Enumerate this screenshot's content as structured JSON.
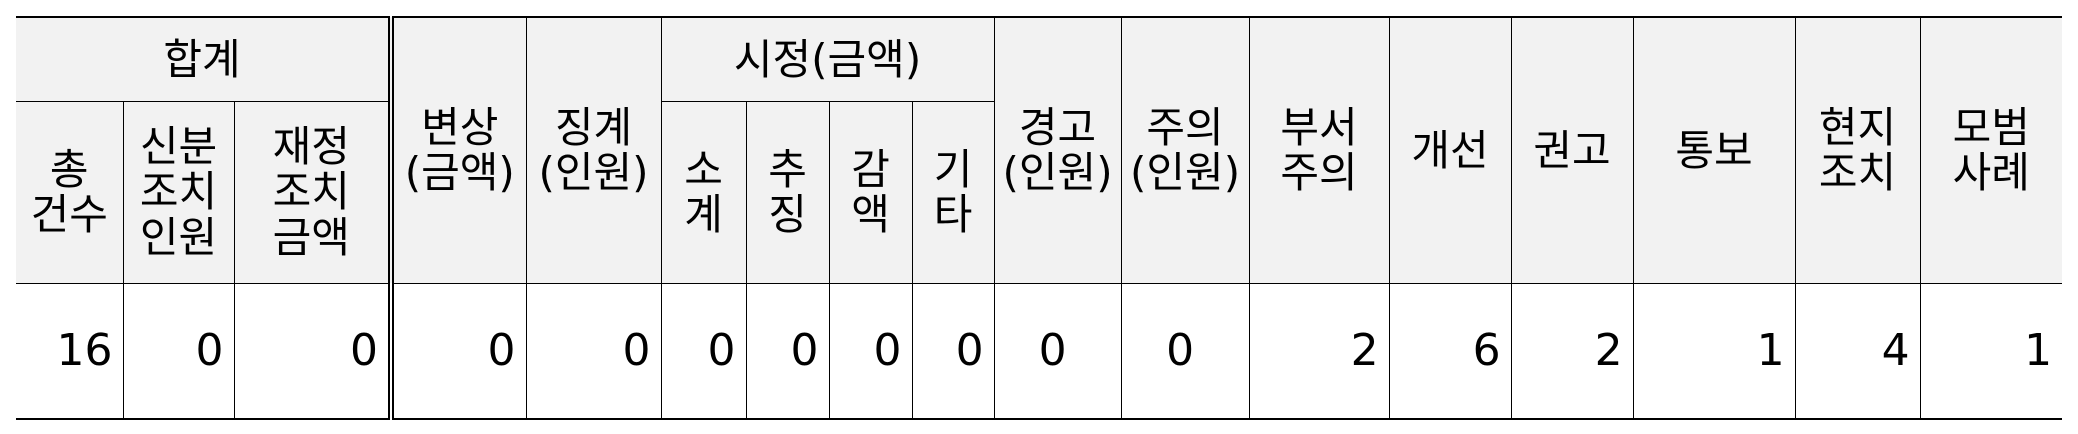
{
  "headers": {
    "total_group": "합계",
    "total_count": "총\n건수",
    "personnel_action": "신분\n조치\n인원",
    "financial_action": "재정\n조치\n금액",
    "compensation": "변상\n(금액)",
    "discipline": "징계\n(인원)",
    "correction_group": "시정(금액)",
    "correction_subtotal": "소\n계",
    "correction_collect": "추\n징",
    "correction_reduce": "감\n액",
    "correction_other": "기\n타",
    "warning": "경고\n(인원)",
    "caution": "주의\n(인원)",
    "dept_caution": "부서\n주의",
    "improvement": "개선",
    "recommendation": "권고",
    "notification": "통보",
    "onsite_action": "현지\n조치",
    "best_practice": "모범\n사례"
  },
  "values": {
    "total_count": "16",
    "personnel_action": "0",
    "financial_action": "0",
    "compensation": "0",
    "discipline": "0",
    "correction_subtotal": "0",
    "correction_collect": "0",
    "correction_reduce": "0",
    "correction_other": "0",
    "warning": "0",
    "caution": "0",
    "dept_caution": "2",
    "improvement": "6",
    "recommendation": "2",
    "notification": "1",
    "onsite_action": "4",
    "best_practice": "1"
  }
}
